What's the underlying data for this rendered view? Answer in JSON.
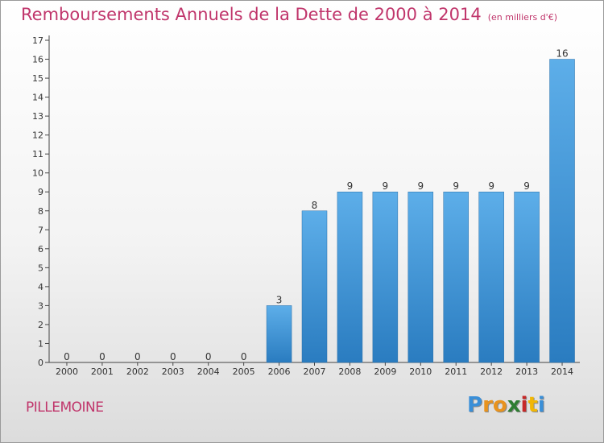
{
  "title": "Remboursements Annuels de la Dette de 2000 à 2014",
  "subtitle": "(en milliers d'€)",
  "place": "PILLEMOINE",
  "logo": {
    "letters": [
      "P",
      "r",
      "o",
      "x",
      "i",
      "t",
      "i"
    ],
    "colors": [
      "#3a8fd8",
      "#e8931e",
      "#e8931e",
      "#2e7d32",
      "#c62828",
      "#f2b705",
      "#3a8fd8"
    ]
  },
  "colors": {
    "bar_light": "#5daee9",
    "bar_dark": "#2a7cc0",
    "title": "#c0356b"
  },
  "chart_data": {
    "type": "bar",
    "categories": [
      "2000",
      "2001",
      "2002",
      "2003",
      "2004",
      "2005",
      "2006",
      "2007",
      "2008",
      "2009",
      "2010",
      "2011",
      "2012",
      "2013",
      "2014"
    ],
    "values": [
      0,
      0,
      0,
      0,
      0,
      0,
      3,
      8,
      9,
      9,
      9,
      9,
      9,
      9,
      16
    ],
    "data_labels": [
      "0",
      "0",
      "0",
      "0",
      "0",
      "0",
      "3",
      "8",
      "9",
      "9",
      "9",
      "9",
      "9",
      "9",
      "16"
    ],
    "ylim": [
      0,
      17
    ],
    "yticks": [
      "0",
      "1",
      "2",
      "3",
      "4",
      "5",
      "6",
      "7",
      "8",
      "9",
      "10",
      "11",
      "12",
      "13",
      "14",
      "15",
      "16",
      "17"
    ],
    "grid": false
  }
}
